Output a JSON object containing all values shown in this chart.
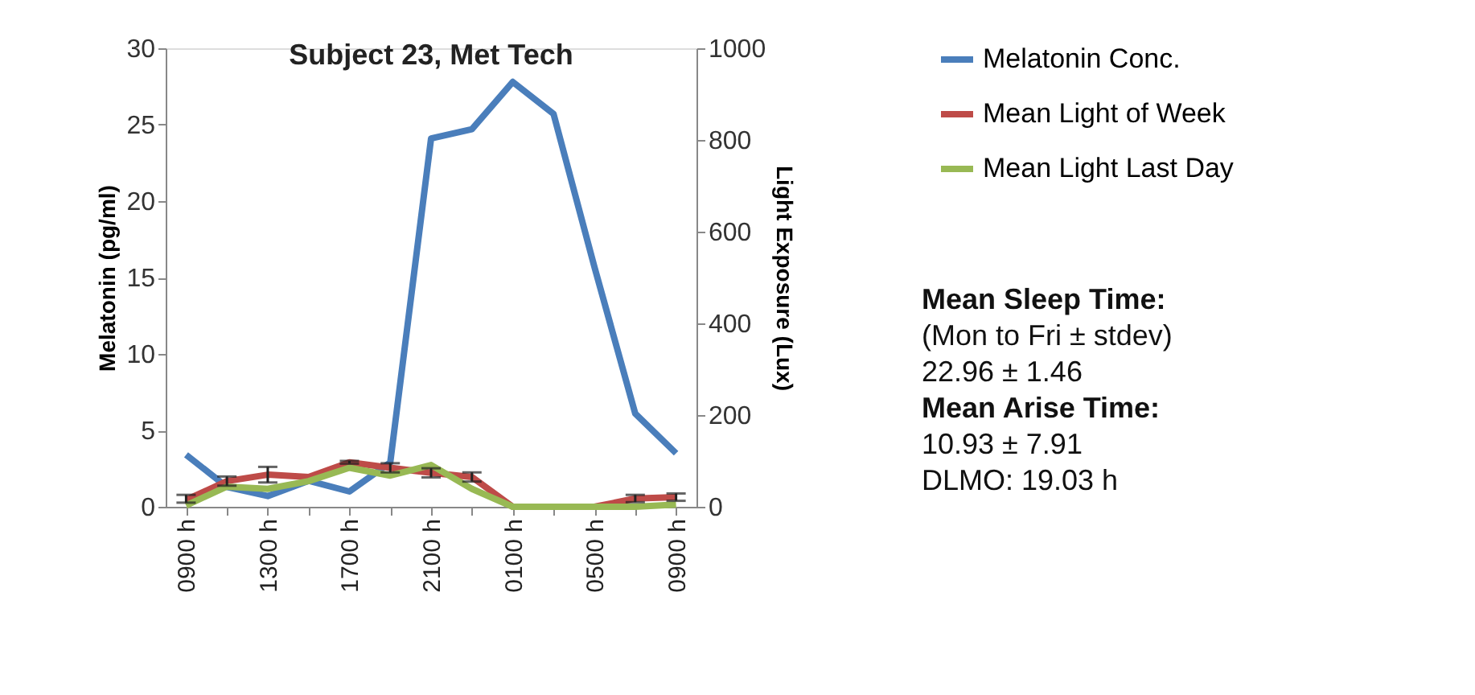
{
  "chart_data": {
    "type": "line",
    "title": "Subject 23, Met Tech",
    "ylabel": "Melatonin (pg/ml)",
    "y2label": "Light Exposure (Lux)",
    "categories": [
      "0900 h",
      null,
      "1300 h",
      null,
      "1700 h",
      null,
      "2100 h",
      null,
      "0100 h",
      null,
      "0500 h",
      null,
      "0900 h"
    ],
    "series": [
      {
        "name": "Melatonin Conc.",
        "color": "#4a7ebb",
        "values": [
          3.4,
          1.3,
          0.7,
          1.7,
          1.0,
          2.9,
          24.1,
          24.7,
          27.8,
          25.7,
          15.7,
          6.1,
          3.5
        ]
      },
      {
        "name": "Mean Light of Week",
        "color": "#be4b48",
        "axis": "y2",
        "values": [
          15,
          56,
          70,
          65,
          97,
          85,
          74,
          65,
          0,
          0,
          0,
          18,
          21
        ],
        "errors": [
          [
            6,
            11
          ],
          10,
          17,
          null,
          3,
          10,
          10,
          10,
          null,
          null,
          null,
          8,
          8
        ]
      },
      {
        "name": "Mean Light Last Day",
        "color": "#98b954",
        "axis": "y2",
        "values": [
          3,
          44,
          39,
          56,
          85,
          68,
          91,
          39,
          0,
          0,
          0,
          0,
          5
        ]
      }
    ],
    "ylim": [
      0,
      30
    ],
    "yticks": [
      0,
      5,
      10,
      15,
      20,
      25,
      30
    ],
    "y2lim": [
      0,
      1000
    ],
    "y2ticks": [
      0,
      200,
      400,
      600,
      800,
      1000
    ],
    "grid": false,
    "legend": "right",
    "marker": "none",
    "line_style": "solid",
    "annotations": [
      "Mean Sleep Time:",
      "(Mon to Fri ± stdev)",
      "22.96 ± 1.46",
      "Mean Arise Time:",
      "10.93 ± 7.91",
      "DLMO: 19.03 h"
    ]
  }
}
